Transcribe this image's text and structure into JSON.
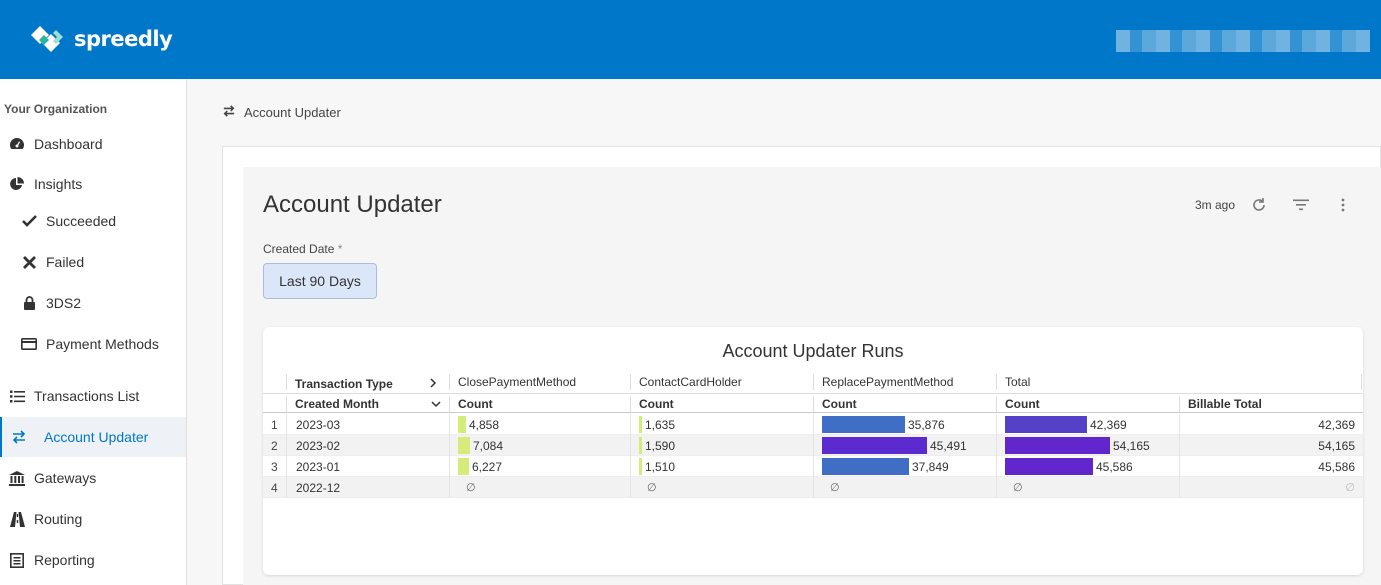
{
  "brand": {
    "name": "spreedly"
  },
  "colors": {
    "topbar": "#0077c8",
    "accent": "#0077c8",
    "close_bar": "#d4ec7a",
    "contact_bar": "#d4ec7a",
    "replace_bar_light": "#3f6fc4",
    "replace_bar_dark": "#5b2bd0",
    "total_bar_light": "#5540c8",
    "total_bar_dark": "#6126cc"
  },
  "sidebar": {
    "org_title": "Your Organization",
    "items": [
      {
        "label": "Dashboard",
        "icon": "dashboard-icon"
      },
      {
        "label": "Insights",
        "icon": "pie-chart-icon"
      },
      {
        "label": "Succeeded",
        "icon": "check-icon"
      },
      {
        "label": "Failed",
        "icon": "x-icon"
      },
      {
        "label": "3DS2",
        "icon": "lock-icon"
      },
      {
        "label": "Payment Methods",
        "icon": "credit-card-icon"
      },
      {
        "label": "Transactions List",
        "icon": "list-icon"
      },
      {
        "label": "Account Updater",
        "icon": "swap-icon"
      },
      {
        "label": "Gateways",
        "icon": "bank-icon"
      },
      {
        "label": "Routing",
        "icon": "road-icon"
      },
      {
        "label": "Reporting",
        "icon": "report-icon"
      }
    ]
  },
  "breadcrumb": {
    "label": "Account Updater",
    "icon": "swap-icon"
  },
  "dashboard": {
    "title": "Account Updater",
    "updated": "3m ago",
    "filter": {
      "label": "Created Date",
      "required_mark": "*",
      "value": "Last 90 Days"
    }
  },
  "table": {
    "title": "Account Updater Runs",
    "pivot_label": "Transaction Type",
    "row_label": "Created Month",
    "pivot_columns": [
      "ClosePaymentMethod",
      "ContactCardHolder",
      "ReplacePaymentMethod",
      "Total"
    ],
    "measure_label": "Count",
    "billable_label": "Billable Total",
    "null_symbol": "∅",
    "rows": [
      {
        "n": "1",
        "month": "2023-03",
        "close": "4,858",
        "contact": "1,635",
        "replace": "35,876",
        "total": "42,369",
        "billable": "42,369"
      },
      {
        "n": "2",
        "month": "2023-02",
        "close": "7,084",
        "contact": "1,590",
        "replace": "45,491",
        "total": "54,165",
        "billable": "54,165"
      },
      {
        "n": "3",
        "month": "2023-01",
        "close": "6,227",
        "contact": "1,510",
        "replace": "37,849",
        "total": "45,586",
        "billable": "45,586"
      },
      {
        "n": "4",
        "month": "2022-12",
        "close": "",
        "contact": "",
        "replace": "",
        "total": "",
        "billable": ""
      }
    ]
  },
  "chart_data": {
    "type": "table",
    "title": "Account Updater Runs",
    "categories": [
      "2023-03",
      "2023-02",
      "2023-01",
      "2022-12"
    ],
    "series": [
      {
        "name": "ClosePaymentMethod",
        "values": [
          4858,
          7084,
          6227,
          null
        ]
      },
      {
        "name": "ContactCardHolder",
        "values": [
          1635,
          1590,
          1510,
          null
        ]
      },
      {
        "name": "ReplacePaymentMethod",
        "values": [
          35876,
          45491,
          37849,
          null
        ]
      },
      {
        "name": "Total",
        "values": [
          42369,
          54165,
          45586,
          null
        ]
      },
      {
        "name": "Billable Total",
        "values": [
          42369,
          54165,
          45586,
          null
        ]
      }
    ]
  }
}
